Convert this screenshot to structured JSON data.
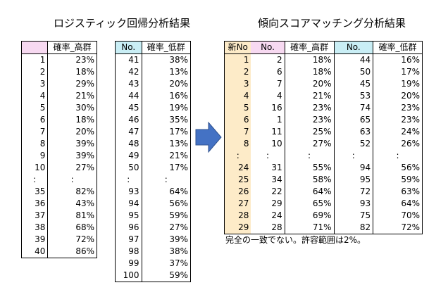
{
  "titles": {
    "logistic": "ロジスティック回帰分析結果",
    "psm": "傾向スコアマッチング分析結果"
  },
  "table1": {
    "headers": [
      "",
      "確率_高群"
    ],
    "rows": [
      [
        "1",
        "23%"
      ],
      [
        "2",
        "18%"
      ],
      [
        "3",
        "29%"
      ],
      [
        "4",
        "21%"
      ],
      [
        "5",
        "30%"
      ],
      [
        "6",
        "18%"
      ],
      [
        "7",
        "20%"
      ],
      [
        "8",
        "39%"
      ],
      [
        "9",
        "39%"
      ],
      [
        "10",
        "27%"
      ],
      [
        ":",
        ":"
      ],
      [
        "35",
        "82%"
      ],
      [
        "36",
        "43%"
      ],
      [
        "37",
        "81%"
      ],
      [
        "38",
        "68%"
      ],
      [
        "39",
        "72%"
      ],
      [
        "40",
        "86%"
      ]
    ]
  },
  "table2": {
    "headers": [
      "No.",
      "確率_低群"
    ],
    "rows": [
      [
        "41",
        "38%"
      ],
      [
        "42",
        "13%"
      ],
      [
        "43",
        "20%"
      ],
      [
        "44",
        "16%"
      ],
      [
        "45",
        "19%"
      ],
      [
        "46",
        "35%"
      ],
      [
        "47",
        "17%"
      ],
      [
        "48",
        "13%"
      ],
      [
        "49",
        "21%"
      ],
      [
        "50",
        "17%"
      ],
      [
        ":",
        ":"
      ],
      [
        "93",
        "64%"
      ],
      [
        "94",
        "56%"
      ],
      [
        "95",
        "59%"
      ],
      [
        "96",
        "27%"
      ],
      [
        "97",
        "39%"
      ],
      [
        "98",
        "38%"
      ],
      [
        "99",
        "37%"
      ],
      [
        "100",
        "59%"
      ]
    ]
  },
  "table3": {
    "headers": [
      "新No",
      "No.",
      "確率_高群",
      "No.",
      "確率_低群"
    ],
    "rows": [
      [
        "1",
        "2",
        "18%",
        "44",
        "16%"
      ],
      [
        "2",
        "6",
        "18%",
        "50",
        "17%"
      ],
      [
        "3",
        "7",
        "20%",
        "45",
        "19%"
      ],
      [
        "4",
        "4",
        "21%",
        "53",
        "20%"
      ],
      [
        "5",
        "16",
        "23%",
        "74",
        "23%"
      ],
      [
        "6",
        "1",
        "23%",
        "65",
        "23%"
      ],
      [
        "7",
        "11",
        "25%",
        "63",
        "24%"
      ],
      [
        "8",
        "10",
        "27%",
        "52",
        "26%"
      ],
      [
        ":",
        ":",
        ":",
        ":",
        ":"
      ],
      [
        "24",
        "31",
        "55%",
        "94",
        "56%"
      ],
      [
        "25",
        "34",
        "58%",
        "95",
        "59%"
      ],
      [
        "26",
        "22",
        "64%",
        "72",
        "63%"
      ],
      [
        "27",
        "29",
        "65%",
        "93",
        "64%"
      ],
      [
        "28",
        "24",
        "69%",
        "75",
        "70%"
      ],
      [
        "29",
        "28",
        "71%",
        "82",
        "72%"
      ]
    ]
  },
  "note": "完全の一致でない。許容範囲は2%。",
  "colors": {
    "arrow": "#4472c4",
    "header_pink": "#f7d9f1",
    "header_teal": "#c9eef5",
    "col_yellow": "#fdebc8"
  }
}
